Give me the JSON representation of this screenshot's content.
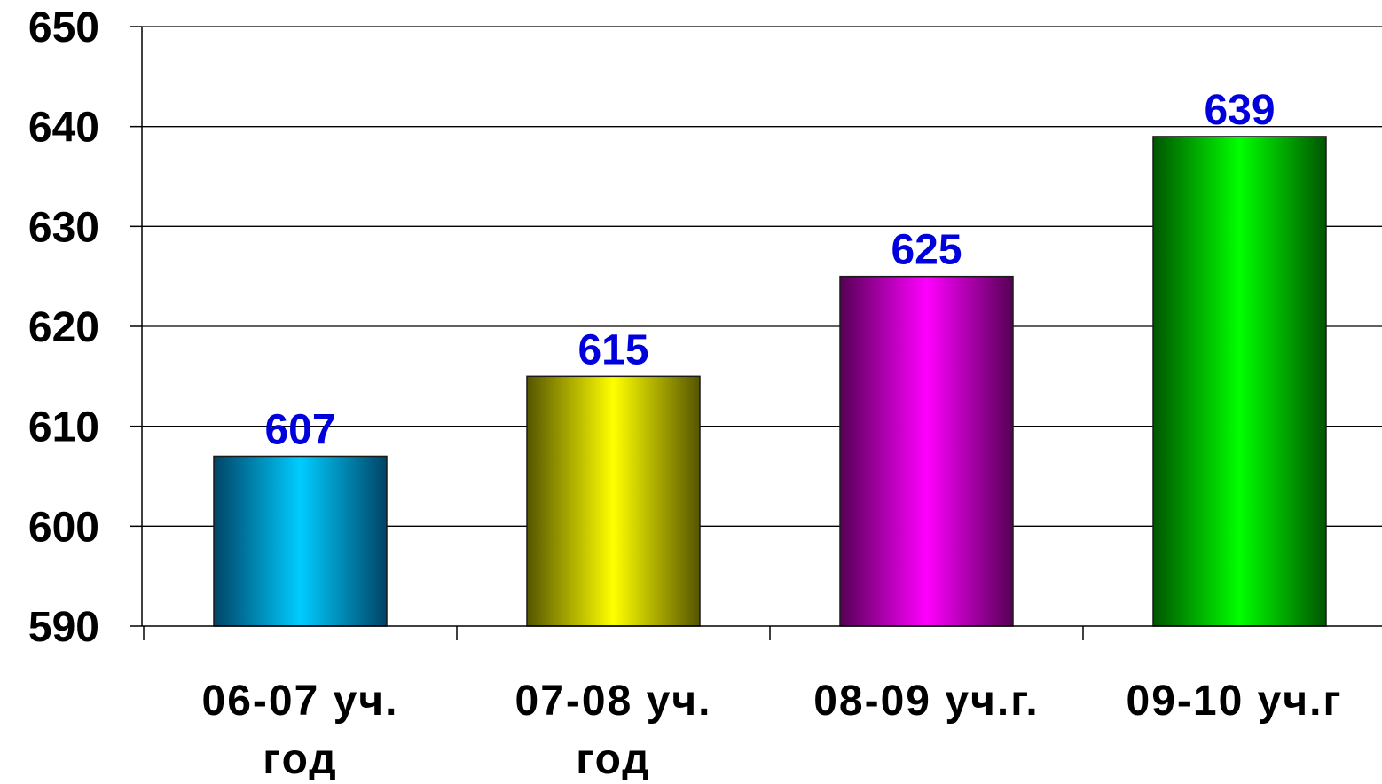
{
  "chart_data": {
    "type": "bar",
    "title": "",
    "xlabel": "",
    "ylabel": "",
    "categories": [
      [
        "06-07 уч.",
        "год"
      ],
      [
        "07-08 уч.",
        "год"
      ],
      [
        "08-09 уч.г."
      ],
      [
        "09-10 уч.г"
      ]
    ],
    "values": [
      607,
      615,
      625,
      639
    ],
    "data_labels": [
      "607",
      "615",
      "625",
      "639"
    ],
    "ylim": [
      590,
      650
    ],
    "yticks": [
      590,
      600,
      610,
      620,
      630,
      640,
      650
    ],
    "grid": true,
    "legend": "none",
    "colors": {
      "bars": [
        "#00CCFF",
        "#FFFF00",
        "#FF00FF",
        "#00FF00"
      ],
      "bar_edges": [
        "#004466",
        "#555500",
        "#550055",
        "#005500"
      ],
      "data_label": "#0000DD",
      "axis_text": "#000000",
      "gridline": "#000000"
    }
  }
}
